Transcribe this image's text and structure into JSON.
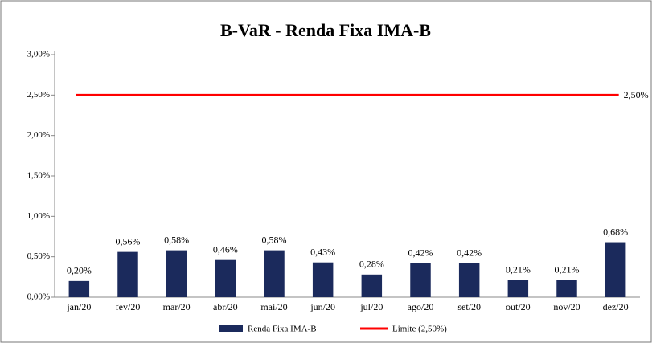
{
  "chart_data": {
    "type": "bar",
    "title": "B-VaR - Renda Fixa IMA-B",
    "categories": [
      "jan/20",
      "fev/20",
      "mar/20",
      "abr/20",
      "mai/20",
      "jun/20",
      "jul/20",
      "ago/20",
      "set/20",
      "out/20",
      "nov/20",
      "dez/20"
    ],
    "series": [
      {
        "name": "Renda Fixa IMA-B",
        "color": "#1b2a5c",
        "values": [
          0.2,
          0.56,
          0.58,
          0.46,
          0.58,
          0.43,
          0.28,
          0.42,
          0.42,
          0.21,
          0.21,
          0.68
        ],
        "value_labels": [
          "0,20%",
          "0,56%",
          "0,58%",
          "0,46%",
          "0,58%",
          "0,43%",
          "0,28%",
          "0,42%",
          "0,42%",
          "0,21%",
          "0,21%",
          "0,68%"
        ]
      }
    ],
    "limit": {
      "name": "Limite (2,50%)",
      "value": 2.5,
      "label": "2,50%",
      "color": "#ff0000"
    },
    "ylim": [
      0,
      3
    ],
    "yticks": [
      {
        "value": 0,
        "label": "0,00%"
      },
      {
        "value": 0.5,
        "label": "0,50%"
      },
      {
        "value": 1,
        "label": "1,00%"
      },
      {
        "value": 1.5,
        "label": "1,50%"
      },
      {
        "value": 2,
        "label": "2,00%"
      },
      {
        "value": 2.5,
        "label": "2,50%"
      },
      {
        "value": 3,
        "label": "3,00%"
      }
    ]
  }
}
